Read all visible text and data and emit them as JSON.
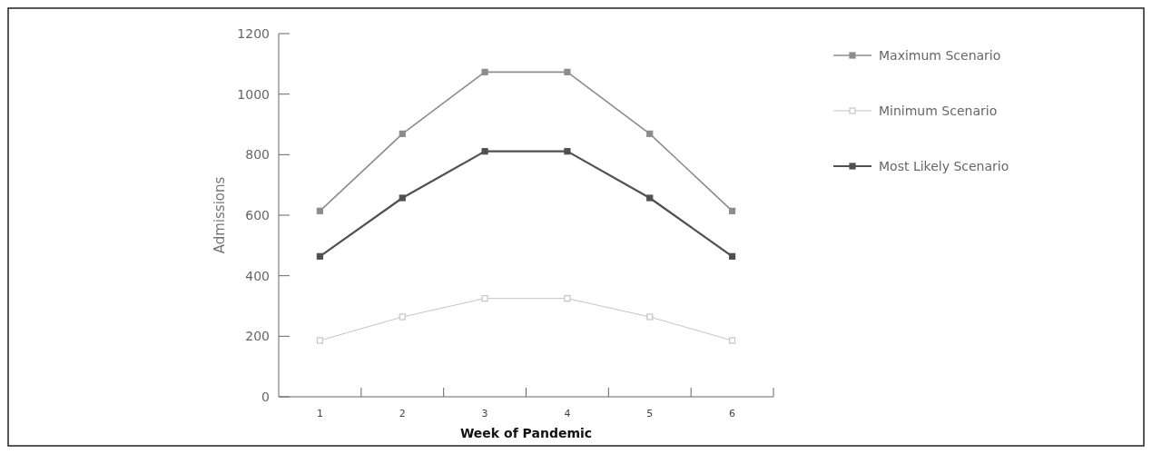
{
  "chart_data": {
    "type": "line",
    "xlabel": "Week of Pandemic",
    "ylabel": "Admissions",
    "categories": [
      "1",
      "2",
      "3",
      "4",
      "5",
      "6"
    ],
    "series": [
      {
        "name": "Maximum Scenario",
        "color": "#8c8c8c",
        "values": [
          614,
          869,
          1073,
          1073,
          869,
          614
        ]
      },
      {
        "name": "Minimum Scenario",
        "color": "#c4c4c4",
        "values": [
          186,
          264,
          325,
          325,
          264,
          186
        ]
      },
      {
        "name": "Most Likely Scenario",
        "color": "#505050",
        "values": [
          464,
          657,
          811,
          811,
          657,
          464
        ]
      }
    ],
    "ylim": [
      0,
      1200
    ],
    "yticks": [
      0,
      200,
      400,
      600,
      800,
      1000,
      1200
    ],
    "grid": false,
    "legend": "top right",
    "marker": "square",
    "line_style": "solid"
  }
}
